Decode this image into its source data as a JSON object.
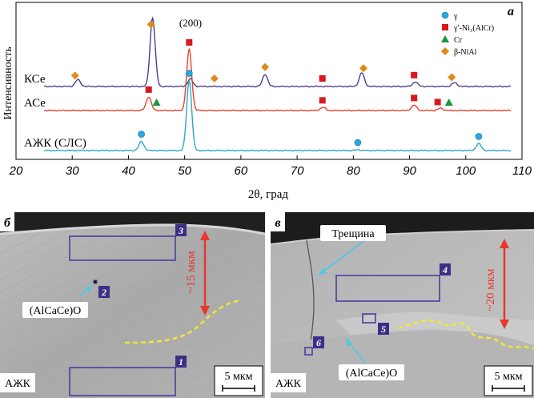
{
  "chart_data": {
    "type": "line",
    "panel_label": "а",
    "xlabel": "2θ, град",
    "ylabel": "Интенсивность",
    "xlim": [
      20,
      110
    ],
    "x_ticks": [
      20,
      30,
      40,
      50,
      60,
      70,
      80,
      90,
      100,
      110
    ],
    "grid": false,
    "legend_position": "top-right",
    "peak_label": "(200)",
    "legend": [
      {
        "symbol": "circle",
        "color": "#29a9df",
        "label": "γ"
      },
      {
        "symbol": "square",
        "color": "#d7191c",
        "label": "γ′-Ni₃(AlCr)"
      },
      {
        "symbol": "triangle",
        "color": "#1a9641",
        "label": "Cr"
      },
      {
        "symbol": "diamond",
        "color": "#e08a1e",
        "label": "β-NiAl"
      }
    ],
    "series": [
      {
        "name": "КСе",
        "color": "#4b3f8f",
        "peaks": [
          [
            31.0,
            0.09
          ],
          [
            44.3,
            0.9
          ],
          [
            51.0,
            0.1
          ],
          [
            64.3,
            0.16
          ],
          [
            81.5,
            0.18
          ],
          [
            91.0,
            0.06
          ],
          [
            98.0,
            0.05
          ]
        ],
        "markers": [
          {
            "x": 30.5,
            "symbol": "diamond"
          },
          {
            "x": 44.0,
            "symbol": "diamond"
          },
          {
            "x": 55.3,
            "symbol": "diamond"
          },
          {
            "x": 64.3,
            "symbol": "diamond"
          },
          {
            "x": 74.5,
            "symbol": "square"
          },
          {
            "x": 81.8,
            "symbol": "diamond"
          },
          {
            "x": 90.8,
            "symbol": "square"
          },
          {
            "x": 97.5,
            "symbol": "diamond"
          }
        ]
      },
      {
        "name": "АСе",
        "color": "#e6432b",
        "peaks": [
          [
            43.6,
            0.18
          ],
          [
            50.8,
            0.8
          ],
          [
            74.6,
            0.04
          ],
          [
            90.8,
            0.07
          ],
          [
            95.5,
            0.03
          ]
        ],
        "markers": [
          {
            "x": 43.6,
            "symbol": "square"
          },
          {
            "x": 45.0,
            "symbol": "triangle"
          },
          {
            "x": 50.8,
            "symbol": "square"
          },
          {
            "x": 74.5,
            "symbol": "square"
          },
          {
            "x": 90.8,
            "symbol": "square"
          },
          {
            "x": 95.0,
            "symbol": "square"
          },
          {
            "x": 97.0,
            "symbol": "triangle"
          }
        ]
      },
      {
        "name": "АЖК (СЛС)",
        "color": "#29a9c9",
        "peaks": [
          [
            42.3,
            0.12
          ],
          [
            50.8,
            0.92
          ],
          [
            80.8,
            0.01
          ],
          [
            102.3,
            0.09
          ]
        ],
        "markers": [
          {
            "x": 42.3,
            "symbol": "circle"
          },
          {
            "x": 50.8,
            "symbol": "circle"
          },
          {
            "x": 80.8,
            "symbol": "circle"
          },
          {
            "x": 102.3,
            "symbol": "circle"
          }
        ]
      }
    ]
  },
  "micrographs": [
    {
      "panel_label": "б",
      "corner_label": "АЖК",
      "scale_bar": "5 мкм",
      "dimension": "~15 мкм",
      "phase_label": "(AlCaCe)O",
      "boxes": [
        "3",
        "2",
        "1"
      ]
    },
    {
      "panel_label": "в",
      "corner_label": "АЖК",
      "scale_bar": "5 мкм",
      "dimension": "~20 мкм",
      "phase_label": "(AlCaCe)O",
      "crack_label": "Трещина",
      "boxes": [
        "4",
        "5",
        "6"
      ]
    }
  ],
  "colors": {
    "box": "#4b3e9a",
    "arrow": "#e8372c",
    "pointer": "#5bc4de",
    "interface": "#f1e53a"
  }
}
